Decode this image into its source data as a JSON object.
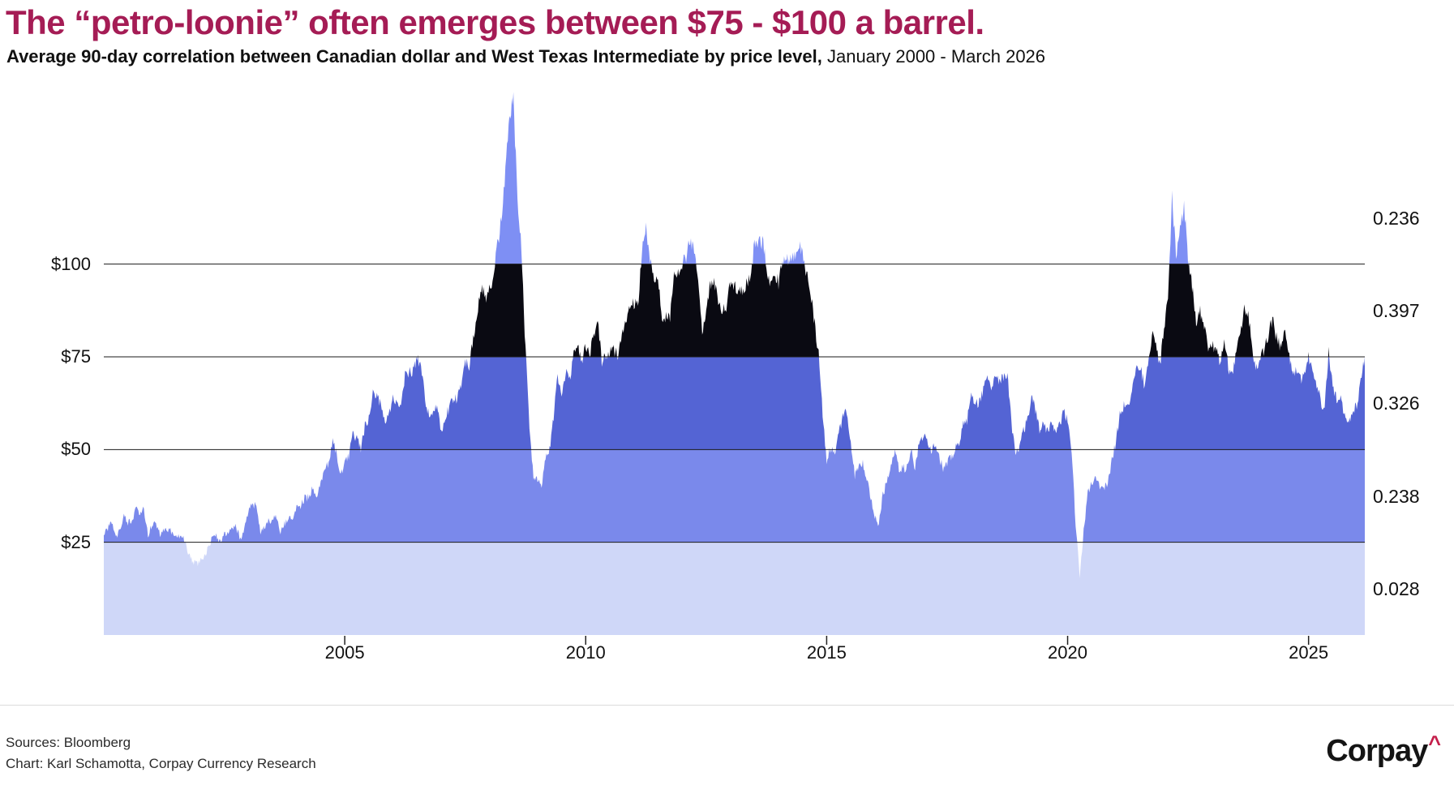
{
  "page": {
    "title": "The “petro-loonie” often emerges between $75 - $100 a barrel.",
    "subtitle_bold": "Average 90-day correlation between Canadian dollar and West Texas Intermediate by price level,",
    "subtitle_light": " January 2000 - March 2026"
  },
  "footer": {
    "source_line1": "Sources: Bloomberg",
    "source_line2": "Chart: Karl Schamotta, Corpay Currency Research",
    "logo_text": "Corpay",
    "logo_caret": "^"
  },
  "colors": {
    "title": "#a51c55",
    "logo_caret": "#c41f4b",
    "gridline": "#1a1a1a",
    "tick": "#222222"
  },
  "chart_data": {
    "type": "area",
    "title": "The “petro-loonie” often emerges between $75 - $100 a barrel.",
    "subtitle": "Average 90-day correlation between Canadian dollar and West Texas Intermediate by price level, January 2000 - March 2026",
    "x_start": "2000-01",
    "x_end": "2026-03",
    "x_years_span": 26.1667,
    "x_tick_labels": [
      "2005",
      "2010",
      "2015",
      "2020",
      "2025"
    ],
    "ylim": [
      0,
      150
    ],
    "grid": true,
    "y_axis_left": {
      "unit": "USD per barrel (WTI)",
      "ticks": [
        {
          "value": 25,
          "label": "$25"
        },
        {
          "value": 50,
          "label": "$50"
        },
        {
          "value": 75,
          "label": "$75"
        },
        {
          "value": 100,
          "label": "$100"
        }
      ]
    },
    "bands": [
      {
        "price_range": [
          0,
          25
        ],
        "correlation_label": "0.028",
        "color": "#cfd7f8"
      },
      {
        "price_range": [
          25,
          50
        ],
        "correlation_label": "0.238",
        "color": "#7a89eb"
      },
      {
        "price_range": [
          50,
          75
        ],
        "correlation_label": "0.326",
        "color": "#5464d4"
      },
      {
        "price_range": [
          75,
          100
        ],
        "correlation_label": "0.397",
        "color": "#0a0a12"
      },
      {
        "price_range": [
          100,
          150
        ],
        "correlation_label": "0.236",
        "color": "#7e8ff4",
        "label_anchor_value": 112.5
      }
    ],
    "series": [
      {
        "name": "WTI crude oil price, monthly (USD/bbl)",
        "x_unit": "month",
        "values": [
          27,
          29,
          30,
          26,
          29,
          32,
          30,
          31,
          34,
          33,
          34,
          27,
          30,
          30,
          27,
          28,
          28,
          28,
          26,
          27,
          26,
          22,
          20,
          19,
          20,
          21,
          24,
          26,
          27,
          25,
          27,
          28,
          29,
          29,
          26,
          29,
          33,
          36,
          34,
          28,
          29,
          31,
          31,
          32,
          28,
          30,
          31,
          32,
          34,
          35,
          37,
          37,
          40,
          38,
          41,
          45,
          46,
          53,
          48,
          43,
          47,
          48,
          54,
          53,
          50,
          56,
          59,
          65,
          65,
          62,
          58,
          59,
          65,
          62,
          63,
          70,
          71,
          71,
          74,
          73,
          64,
          59,
          59,
          62,
          54,
          59,
          61,
          64,
          63,
          68,
          74,
          72,
          80,
          86,
          94,
          91,
          93,
          95,
          105,
          112,
          125,
          140,
          145,
          117,
          104,
          77,
          57,
          42,
          42,
          39,
          48,
          50,
          59,
          70,
          64,
          71,
          69,
          76,
          78,
          74,
          78,
          76,
          81,
          84,
          74,
          75,
          76,
          77,
          75,
          82,
          84,
          89,
          89,
          89,
          103,
          110,
          101,
          96,
          97,
          86,
          86,
          86,
          97,
          98,
          100,
          102,
          106,
          103,
          95,
          82,
          88,
          94,
          95,
          89,
          87,
          88,
          95,
          95,
          93,
          92,
          95,
          96,
          105,
          106,
          106,
          100,
          94,
          98,
          95,
          101,
          101,
          102,
          102,
          106,
          103,
          97,
          93,
          84,
          76,
          59,
          47,
          51,
          48,
          54,
          59,
          60,
          51,
          43,
          45,
          46,
          42,
          37,
          32,
          30,
          38,
          41,
          46,
          49,
          45,
          45,
          45,
          50,
          45,
          52,
          53,
          53,
          50,
          51,
          48,
          45,
          46,
          48,
          50,
          52,
          57,
          58,
          64,
          62,
          63,
          66,
          70,
          67,
          71,
          68,
          70,
          71,
          57,
          49,
          51,
          55,
          58,
          64,
          61,
          55,
          57,
          55,
          57,
          54,
          57,
          60,
          58,
          50,
          30,
          16,
          28,
          38,
          41,
          42,
          40,
          40,
          41,
          47,
          52,
          59,
          62,
          62,
          65,
          72,
          73,
          68,
          72,
          81,
          79,
          72,
          83,
          92,
          118,
          102,
          110,
          116,
          101,
          94,
          84,
          87,
          84,
          77,
          78,
          77,
          73,
          80,
          72,
          70,
          76,
          81,
          89,
          86,
          77,
          72,
          74,
          77,
          81,
          85,
          80,
          78,
          82,
          77,
          70,
          72,
          69,
          70,
          75,
          71,
          68,
          63,
          61,
          76,
          67,
          64,
          64,
          59,
          58,
          60,
          62,
          68,
          75
        ]
      }
    ]
  }
}
